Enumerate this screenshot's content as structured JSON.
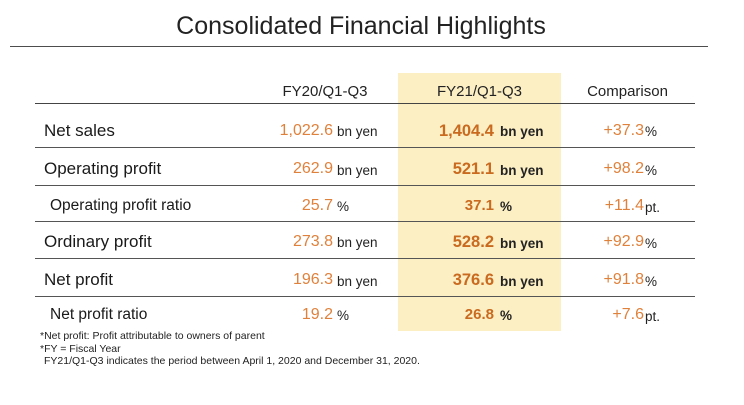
{
  "title": "Consolidated Financial Highlights",
  "columns": {
    "prev": "FY20/Q1-Q3",
    "cur": "FY21/Q1-Q3",
    "cmp": "Comparison"
  },
  "rows": [
    {
      "label": "Net sales",
      "prev": "1,022.6",
      "prev_unit": "bn yen",
      "cur": "1,404.4",
      "cur_unit": "bn yen",
      "cmp": "+37.3",
      "cmp_unit": "%"
    },
    {
      "label": "Operating profit",
      "prev": "262.9",
      "prev_unit": "bn yen",
      "cur": "521.1",
      "cur_unit": "bn yen",
      "cmp": "+98.2",
      "cmp_unit": "%"
    },
    {
      "label": "Operating profit ratio",
      "prev": "25.7",
      "prev_unit": "%",
      "cur": "37.1",
      "cur_unit": "%",
      "cmp": "+11.4",
      "cmp_unit": "pt."
    },
    {
      "label": "Ordinary profit",
      "prev": "273.8",
      "prev_unit": "bn yen",
      "cur": "528.2",
      "cur_unit": "bn yen",
      "cmp": "+92.9",
      "cmp_unit": "%"
    },
    {
      "label": "Net profit",
      "prev": "196.3",
      "prev_unit": "bn yen",
      "cur": "376.6",
      "cur_unit": "bn yen",
      "cmp": "+91.8",
      "cmp_unit": "%"
    },
    {
      "label": "Net profit ratio",
      "prev": "19.2",
      "prev_unit": "%",
      "cur": "26.8",
      "cur_unit": "%",
      "cmp": "+7.6",
      "cmp_unit": "pt."
    }
  ],
  "notes": [
    "*Net profit: Profit attributable to owners of parent",
    "*FY = Fiscal Year",
    "FY21/Q1-Q3 indicates the period between April 1, 2020 and December 31, 2020."
  ],
  "colors": {
    "highlight": "#fcefc4",
    "value_orange": "#e0813b"
  }
}
